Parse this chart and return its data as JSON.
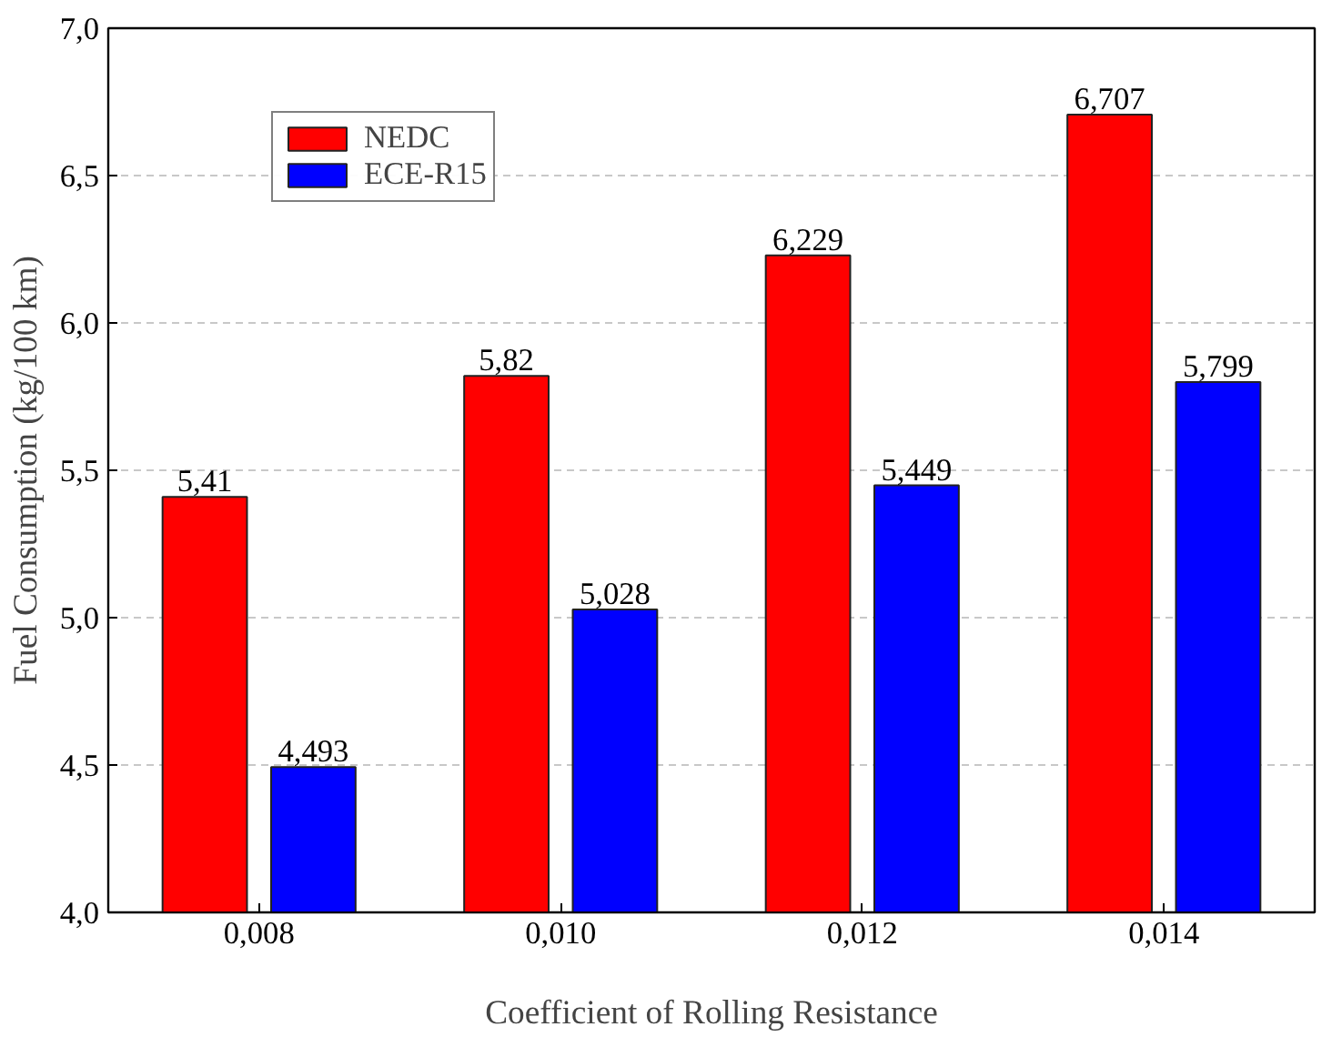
{
  "chart_data": {
    "type": "bar",
    "xlabel": "Coefficient of Rolling Resistance",
    "ylabel": "Fuel Consumption (kg/100 km)",
    "categories": [
      "0,008",
      "0,010",
      "0,012",
      "0,014"
    ],
    "series": [
      {
        "name": "NEDC",
        "color": "#ff0000",
        "values": [
          5.41,
          5.82,
          6.229,
          6.707
        ],
        "value_labels": [
          "5,41",
          "5,82",
          "6,229",
          "6,707"
        ]
      },
      {
        "name": "ECE-R15",
        "color": "#0000ff",
        "values": [
          4.493,
          5.028,
          5.449,
          5.799
        ],
        "value_labels": [
          "4,493",
          "5,028",
          "5,449",
          "5,799"
        ]
      }
    ],
    "ylim": [
      4.0,
      7.0
    ],
    "yticks": [
      {
        "value": 4.0,
        "label": "4,0"
      },
      {
        "value": 4.5,
        "label": "4,5"
      },
      {
        "value": 5.0,
        "label": "5,0"
      },
      {
        "value": 5.5,
        "label": "5,5"
      },
      {
        "value": 6.0,
        "label": "6,0"
      },
      {
        "value": 6.5,
        "label": "6,5"
      },
      {
        "value": 7.0,
        "label": "7,0"
      }
    ],
    "grid": "y",
    "legend": "top left"
  }
}
